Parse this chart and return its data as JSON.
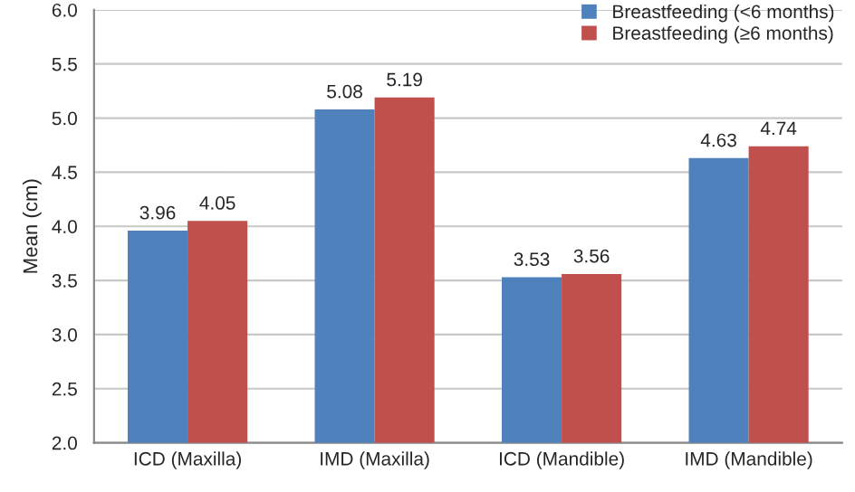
{
  "chart_data": {
    "type": "bar",
    "ylabel": "Mean (cm)",
    "categories": [
      "ICD (Maxilla)",
      "IMD (Maxilla)",
      "ICD (Mandible)",
      "IMD (Mandible)"
    ],
    "series": [
      {
        "name": "Breastfeeding (<6 months)",
        "color": "#4f81bd",
        "values": [
          3.96,
          5.08,
          3.53,
          4.63
        ]
      },
      {
        "name": "Breastfeeding (≥6 months)",
        "color": "#c0504d",
        "values": [
          4.05,
          5.19,
          3.56,
          4.74
        ]
      }
    ],
    "ylim": [
      2.0,
      6.0
    ],
    "yticks": [
      {
        "value": 2.0,
        "label": "2.0"
      },
      {
        "value": 2.5,
        "label": "2.5"
      },
      {
        "value": 3.0,
        "label": "3.0"
      },
      {
        "value": 3.5,
        "label": "3.5"
      },
      {
        "value": 4.0,
        "label": "4.0"
      },
      {
        "value": 4.5,
        "label": "4.5"
      },
      {
        "value": 5.0,
        "label": "5.0"
      },
      {
        "value": 5.5,
        "label": "5.5"
      },
      {
        "value": 6.0,
        "label": "6.0"
      }
    ],
    "grid": "y",
    "legend": "top right",
    "data_labels": true
  }
}
